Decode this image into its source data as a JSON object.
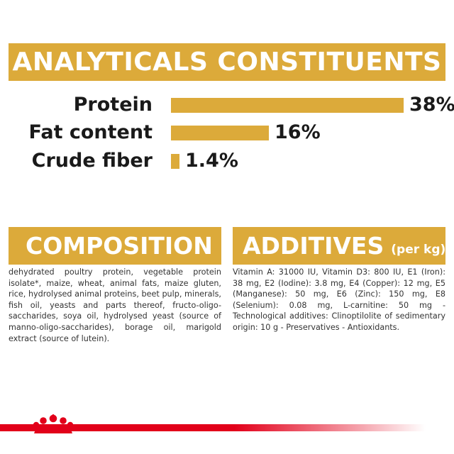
{
  "analytics": {
    "title": "ANALYTICALS CONSTITUENTS",
    "items": [
      {
        "label": "Protein",
        "value": "38%",
        "percent": 38
      },
      {
        "label": "Fat content",
        "value": "16%",
        "percent": 16
      },
      {
        "label": "Crude fiber",
        "value": "1.4%",
        "percent": 1.4
      }
    ]
  },
  "composition": {
    "title": "COMPOSITION",
    "text": "dehydrated poultry protein, vegetable protein isolate*, maize, wheat, animal fats, maize gluten, rice, hydrolysed animal proteins, beet pulp, minerals, fish oil, yeasts and parts thereof, fructo-oligo-saccharides, soya oil, hydrolysed yeast (source of manno-oligo-saccharides), borage oil, marigold extract (source of lutein)."
  },
  "additives": {
    "title": "ADDITIVES",
    "unit": "(per kg)",
    "text": "Vitamin A: 31000 IU, Vitamin D3: 800 IU, E1 (Iron): 38 mg, E2 (Iodine): 3.8 mg, E4 (Copper): 12 mg, E5 (Manganese): 50 mg, E6 (Zinc): 150 mg, E8 (Selenium): 0.08 mg, L-carnitine: 50 mg - Technological additives: Clinoptilolite of sedimentary origin: 10 g - Preservatives - Antioxidants."
  },
  "colors": {
    "accent": "#dcaa3a",
    "brand_red": "#e2001a"
  },
  "logo": {
    "icon": "crown-logo-icon"
  }
}
